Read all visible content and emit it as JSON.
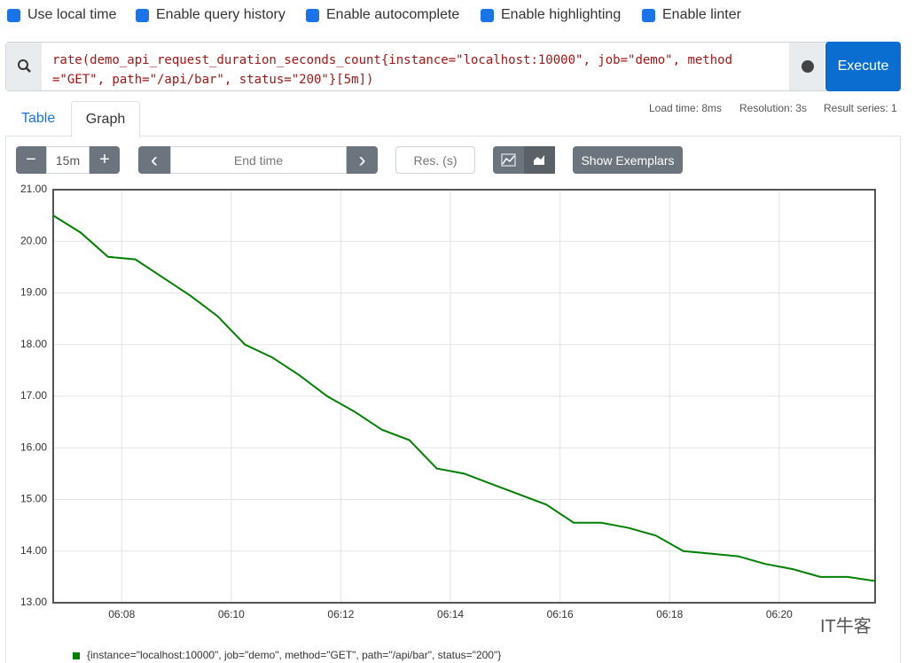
{
  "options": [
    "Use local time",
    "Enable query history",
    "Enable autocomplete",
    "Enable highlighting",
    "Enable linter"
  ],
  "query": "rate(demo_api_request_duration_seconds_count{instance=\"localhost:10000\", job=\"demo\", method=\"GET\", path=\"/api/bar\", status=\"200\"}[5m])",
  "execute": "Execute",
  "tabs": [
    "Table",
    "Graph"
  ],
  "stats": [
    "Load time: 8ms",
    "Resolution: 3s",
    "Result series: 1"
  ],
  "controls": {
    "minus": "−",
    "range": "15m",
    "plus": "+",
    "prev": "‹",
    "end_time": "End time",
    "next": "›",
    "resolution": "Res. (s)",
    "exemplars": "Show Exemplars"
  },
  "watermark": "IT牛客",
  "chart_data": {
    "type": "line",
    "x": [
      "06:06:45",
      "06:07:15",
      "06:07:45",
      "06:08:15",
      "06:08:45",
      "06:09:15",
      "06:09:45",
      "06:10:15",
      "06:10:45",
      "06:11:15",
      "06:11:45",
      "06:12:15",
      "06:12:45",
      "06:13:15",
      "06:13:45",
      "06:14:15",
      "06:14:45",
      "06:15:15",
      "06:15:45",
      "06:16:15",
      "06:16:45",
      "06:17:15",
      "06:17:45",
      "06:18:15",
      "06:18:45",
      "06:19:15",
      "06:19:45",
      "06:20:15",
      "06:20:45",
      "06:21:15",
      "06:21:45"
    ],
    "series": [
      {
        "name": "{instance=\"localhost:10000\", job=\"demo\", method=\"GET\", path=\"/api/bar\", status=\"200\"}",
        "color": "#008000",
        "values": [
          20.5,
          20.17,
          19.7,
          19.65,
          19.3,
          18.95,
          18.55,
          18.0,
          17.75,
          17.4,
          17.0,
          16.7,
          16.35,
          16.15,
          15.6,
          15.5,
          15.3,
          15.1,
          14.9,
          14.55,
          14.55,
          14.45,
          14.3,
          14.0,
          13.95,
          13.9,
          13.75,
          13.65,
          13.5,
          13.5,
          13.42
        ]
      }
    ],
    "xlim": [
      "06:06:45",
      "06:21:45"
    ],
    "xticks": [
      "06:08",
      "06:10",
      "06:12",
      "06:14",
      "06:16",
      "06:18",
      "06:20"
    ],
    "ylim": [
      13,
      21
    ],
    "yticks": [
      {
        "value": 13,
        "label": "13.00"
      },
      {
        "value": 14,
        "label": "14.00"
      },
      {
        "value": 15,
        "label": "15.00"
      },
      {
        "value": 16,
        "label": "16.00"
      },
      {
        "value": 17,
        "label": "17.00"
      },
      {
        "value": 18,
        "label": "18.00"
      },
      {
        "value": 19,
        "label": "19.00"
      },
      {
        "value": 20,
        "label": "20.00"
      },
      {
        "value": 21,
        "label": "21.00"
      }
    ],
    "grid": true
  }
}
